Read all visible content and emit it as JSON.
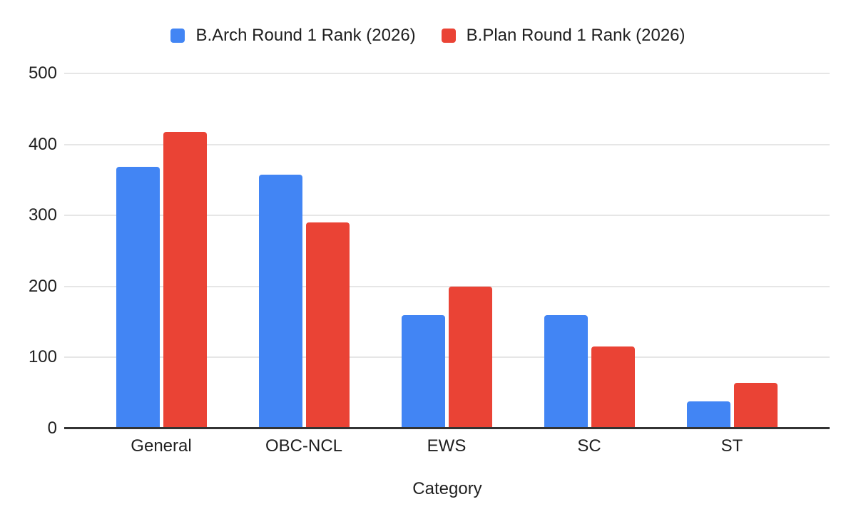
{
  "chart_data": {
    "type": "bar",
    "title": "",
    "categories": [
      "General",
      "OBC-NCL",
      "EWS",
      "SC",
      "ST"
    ],
    "series": [
      {
        "name": "B.Arch Round 1 Rank (2026)",
        "color": "#4285F4",
        "values": [
          368,
          357,
          160,
          160,
          38
        ]
      },
      {
        "name": "B.Plan Round 1 Rank (2026)",
        "color": "#EA4335",
        "values": [
          418,
          290,
          200,
          115,
          64
        ]
      }
    ],
    "xlabel": "Category",
    "ylabel": "",
    "ylim": [
      0,
      500
    ],
    "yticks": [
      0,
      100,
      200,
      300,
      400,
      500
    ],
    "grid": true,
    "legend_position": "top",
    "colors": {
      "background": "#ffffff",
      "gridline": "#e6e6e6",
      "baseline": "#333333",
      "text": "#1f1f1f"
    }
  }
}
